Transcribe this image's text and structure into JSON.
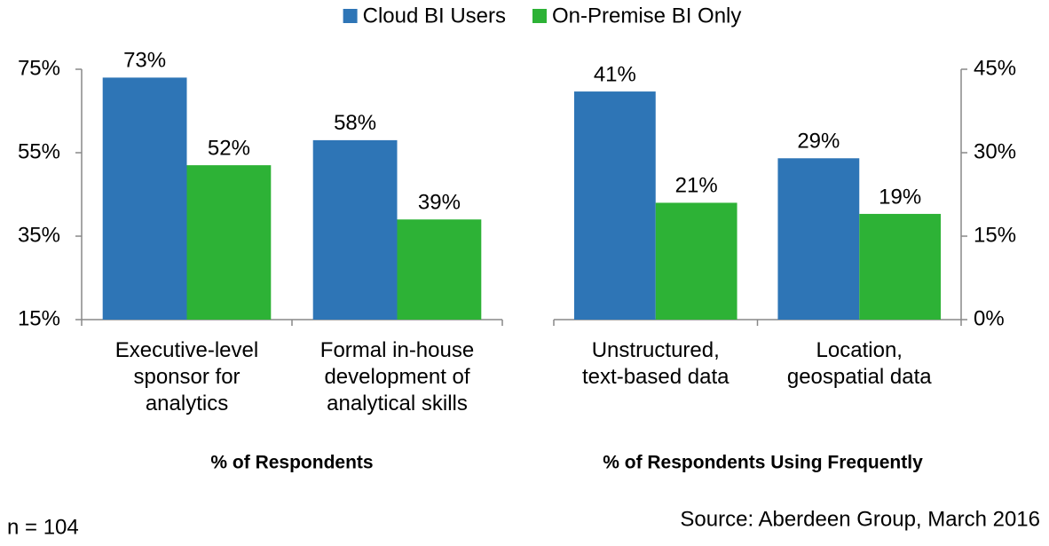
{
  "chart_data": [
    {
      "type": "bar",
      "legend": "top",
      "categories": [
        "Executive-level\nsponsor for\nanalytics",
        "Formal in-house\ndevelopment of\nanalytical skills"
      ],
      "series": [
        {
          "name": "Cloud BI Users",
          "color": "#2e75b6",
          "values": [
            73,
            58
          ],
          "value_labels": [
            "73%",
            "58%"
          ]
        },
        {
          "name": "On-Premise BI Only",
          "color": "#2db236",
          "values": [
            52,
            39
          ],
          "value_labels": [
            "52%",
            "39%"
          ]
        }
      ],
      "ylim": [
        15,
        75
      ],
      "yticks": [
        {
          "value": 15,
          "label": "15%"
        },
        {
          "value": 35,
          "label": "35%"
        },
        {
          "value": 55,
          "label": "55%"
        },
        {
          "value": 75,
          "label": "75%"
        }
      ],
      "y_axis_side": "left",
      "xlabel": "% of Respondents"
    },
    {
      "type": "bar",
      "categories": [
        "Unstructured,\ntext-based data",
        "Location,\ngeospatial data"
      ],
      "series": [
        {
          "color": "#2e75b6",
          "values": [
            41,
            29
          ],
          "value_labels": [
            "41%",
            "29%"
          ]
        },
        {
          "color": "#2db236",
          "values": [
            21,
            19
          ],
          "value_labels": [
            "21%",
            "19%"
          ]
        }
      ],
      "ylim": [
        0,
        45
      ],
      "yticks": [
        {
          "value": 0,
          "label": "0%"
        },
        {
          "value": 15,
          "label": "15%"
        },
        {
          "value": 30,
          "label": "30%"
        },
        {
          "value": 45,
          "label": "45%"
        }
      ],
      "y_axis_side": "right",
      "xlabel": "% of Respondents Using Frequently"
    }
  ],
  "notes": {
    "sample": "n = 104",
    "source": "Source: Aberdeen Group, March 2016"
  }
}
